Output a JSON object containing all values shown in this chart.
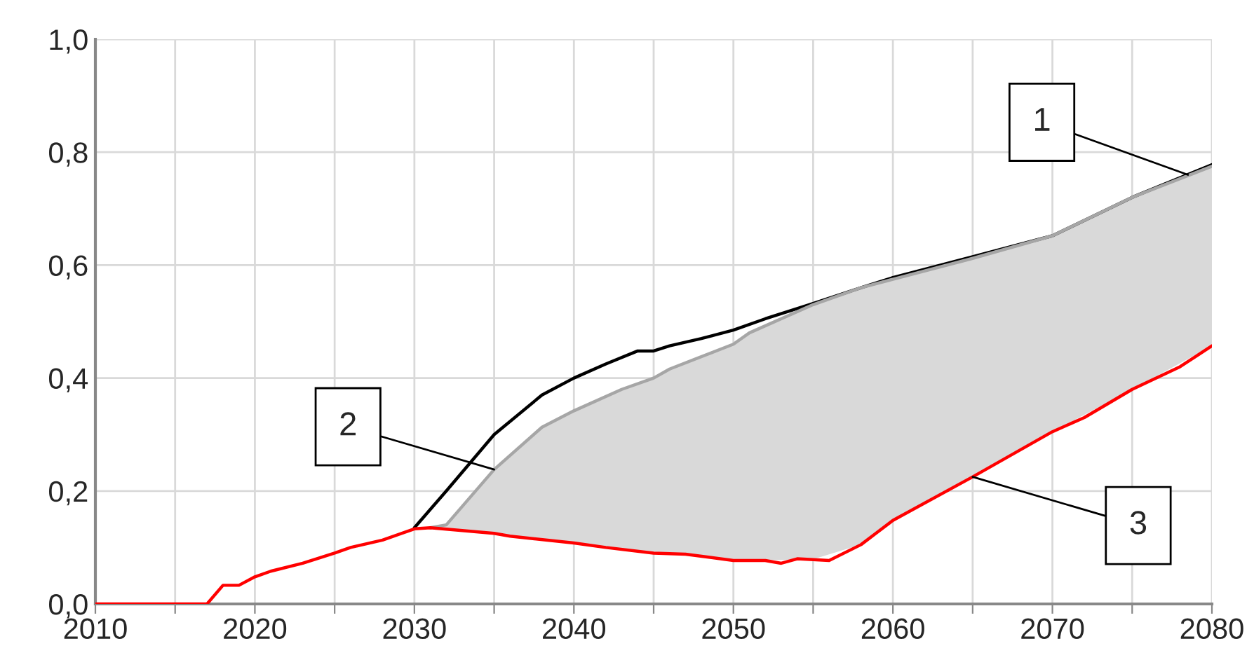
{
  "chart_data": {
    "type": "line",
    "series": [
      {
        "color": "#000000",
        "x": [
          2030,
          2032,
          2035,
          2038,
          2040,
          2042,
          2044,
          2045,
          2046,
          2048,
          2050,
          2052,
          2055,
          2058,
          2060,
          2065,
          2070,
          2075,
          2080
        ],
        "values": [
          0.135,
          0.2,
          0.3,
          0.37,
          0.4,
          0.425,
          0.448,
          0.448,
          0.457,
          0.47,
          0.485,
          0.505,
          0.532,
          0.56,
          0.578,
          0.615,
          0.652,
          0.72,
          0.778
        ]
      },
      {
        "color": "#a6a6a6",
        "x": [
          2031,
          2032,
          2035,
          2038,
          2040,
          2043,
          2045,
          2046,
          2050,
          2051,
          2055,
          2058,
          2060,
          2065,
          2070,
          2075,
          2080
        ],
        "values": [
          0.135,
          0.14,
          0.238,
          0.313,
          0.342,
          0.38,
          0.4,
          0.416,
          0.46,
          0.48,
          0.53,
          0.56,
          0.575,
          0.612,
          0.652,
          0.72,
          0.775
        ],
        "lower": [
          0.135,
          0.132,
          0.125,
          0.112,
          0.108,
          0.097,
          0.09,
          0.089,
          0.077,
          0.077,
          0.079,
          0.105,
          0.148,
          0.225,
          0.305,
          0.38,
          0.457
        ],
        "upper": [
          0.135,
          0.14,
          0.238,
          0.313,
          0.342,
          0.38,
          0.4,
          0.416,
          0.46,
          0.48,
          0.53,
          0.56,
          0.575,
          0.612,
          0.652,
          0.72,
          0.775
        ]
      },
      {
        "color": "#ff0000",
        "x": [
          2010,
          2017,
          2018,
          2019,
          2020,
          2021,
          2023,
          2025,
          2026,
          2028,
          2030,
          2031,
          2033,
          2035,
          2036,
          2040,
          2042,
          2045,
          2047,
          2050,
          2052,
          2053,
          2054,
          2056,
          2058,
          2060,
          2065,
          2070,
          2072,
          2075,
          2078,
          2080
        ],
        "values": [
          0,
          0,
          0.033,
          0.033,
          0.048,
          0.058,
          0.072,
          0.09,
          0.1,
          0.113,
          0.133,
          0.135,
          0.13,
          0.125,
          0.12,
          0.108,
          0.1,
          0.09,
          0.088,
          0.077,
          0.077,
          0.072,
          0.08,
          0.077,
          0.105,
          0.148,
          0.225,
          0.305,
          0.33,
          0.38,
          0.42,
          0.457
        ]
      }
    ],
    "annotations": [
      {
        "text": "1",
        "x": 2078.5,
        "y": 0.76
      },
      {
        "text": "2",
        "x": 2035,
        "y": 0.238
      },
      {
        "text": "3",
        "x": 2065,
        "y": 0.225
      }
    ],
    "xlim": [
      2010,
      2080
    ],
    "xticks": [
      2010,
      {
        "value": 2015,
        "label": null
      },
      2020,
      {
        "value": 2025,
        "label": null
      },
      2030,
      {
        "value": 2035,
        "label": null
      },
      2040,
      {
        "value": 2045,
        "label": null
      },
      2050,
      {
        "value": 2055,
        "label": null
      },
      2060,
      {
        "value": 2065,
        "label": null
      },
      2070,
      {
        "value": 2075,
        "label": null
      },
      2080
    ],
    "ylim": [
      0,
      1
    ],
    "yticks": [
      {
        "value": 0,
        "label": "0,0"
      },
      {
        "value": 0.2,
        "label": "0,2"
      },
      {
        "value": 0.4,
        "label": "0,4"
      },
      {
        "value": 0.6,
        "label": "0,6"
      },
      {
        "value": 0.8,
        "label": "0,8"
      },
      {
        "value": 1,
        "label": "1,0"
      }
    ],
    "grid": true
  }
}
